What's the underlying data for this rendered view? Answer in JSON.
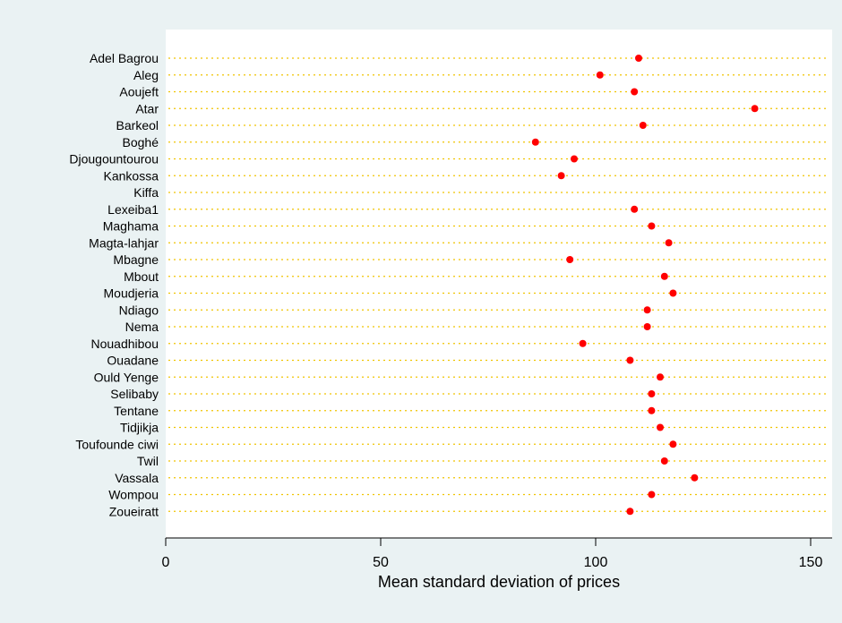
{
  "chart_data": {
    "type": "scatter",
    "orientation": "horizontal-dot",
    "xlabel": "Mean standard deviation of prices",
    "xlim": [
      0,
      155
    ],
    "xticks": [
      0,
      50,
      100,
      150
    ],
    "grid": false,
    "marker_color": "#ff0000",
    "guide_color": "#f0c400",
    "categories": [
      "Adel Bagrou",
      "Aleg",
      "Aoujeft",
      "Atar",
      "Barkeol",
      "Boghé",
      "Djougountourou",
      "Kankossa",
      "Kiffa",
      "Lexeiba1",
      "Maghama",
      "Magta-lahjar",
      "Mbagne",
      "Mbout",
      "Moudjeria",
      "Ndiago",
      "Nema",
      "Nouadhibou",
      "Ouadane",
      "Ould Yenge",
      "Selibaby",
      "Tentane",
      "Tidjikja",
      "Toufounde ciwi",
      "Twil",
      "Vassala",
      "Wompou",
      "Zoueiratt"
    ],
    "values": [
      110,
      101,
      109,
      137,
      111,
      86,
      95,
      92,
      null,
      109,
      113,
      117,
      94,
      116,
      118,
      112,
      112,
      97,
      108,
      115,
      113,
      113,
      115,
      118,
      116,
      123,
      113,
      108
    ]
  }
}
